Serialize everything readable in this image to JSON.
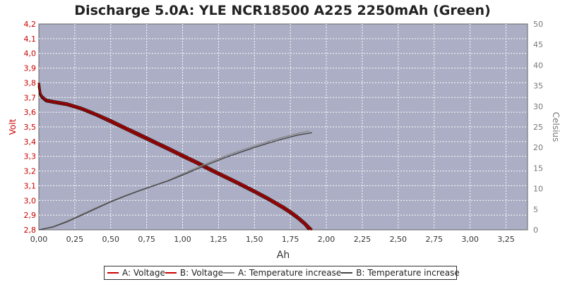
{
  "chart_data": {
    "type": "line",
    "title": "Discharge 5.0A: YLE NCR18500 A225 2250mAh (Green)",
    "xlabel": "Ah",
    "ylabel_left": "Volt",
    "ylabel_right": "Celsius",
    "xlim": [
      0,
      3.4
    ],
    "ylim_left": [
      2.8,
      4.2
    ],
    "ylim_right": [
      0,
      50
    ],
    "grid": true,
    "legend_position": "bottom",
    "x_ticks": [
      "0,00",
      "0,25",
      "0,50",
      "0,75",
      "1,00",
      "1,25",
      "1,50",
      "1,75",
      "2,00",
      "2,25",
      "2,50",
      "2,75",
      "3,00",
      "3,25"
    ],
    "y_left_ticks": [
      "2,8",
      "2,9",
      "3,0",
      "3,1",
      "3,2",
      "3,3",
      "3,4",
      "3,5",
      "3,6",
      "3,7",
      "3,8",
      "3,9",
      "4,0",
      "4,1",
      "4,2"
    ],
    "y_right_ticks": [
      "0",
      "5",
      "10",
      "15",
      "20",
      "25",
      "30",
      "35",
      "40",
      "45",
      "50"
    ],
    "colors": {
      "plot_background": "#abaec4",
      "grid": "#ffffff",
      "voltage_a": "#cc0000",
      "voltage_b": "#cc0000",
      "temperature_a": "#888888",
      "temperature_b": "#444444"
    },
    "series": [
      {
        "name": "A: Voltage",
        "axis": "left",
        "color": "#cc0000",
        "points": [
          [
            0,
            3.78
          ],
          [
            0.01,
            3.72
          ],
          [
            0.02,
            3.7
          ],
          [
            0.05,
            3.675
          ],
          [
            0.1,
            3.665
          ],
          [
            0.2,
            3.648
          ],
          [
            0.3,
            3.618
          ],
          [
            0.4,
            3.578
          ],
          [
            0.5,
            3.532
          ],
          [
            0.6,
            3.485
          ],
          [
            0.7,
            3.438
          ],
          [
            0.8,
            3.392
          ],
          [
            0.9,
            3.345
          ],
          [
            1.0,
            3.297
          ],
          [
            1.1,
            3.25
          ],
          [
            1.2,
            3.2
          ],
          [
            1.3,
            3.153
          ],
          [
            1.4,
            3.105
          ],
          [
            1.5,
            3.055
          ],
          [
            1.6,
            3.003
          ],
          [
            1.7,
            2.945
          ],
          [
            1.75,
            2.913
          ],
          [
            1.8,
            2.877
          ],
          [
            1.85,
            2.836
          ],
          [
            1.88,
            2.8
          ]
        ]
      },
      {
        "name": "B: Voltage",
        "axis": "left",
        "color": "#cc0000",
        "points": [
          [
            0,
            3.8
          ],
          [
            0.01,
            3.73
          ],
          [
            0.02,
            3.71
          ],
          [
            0.05,
            3.685
          ],
          [
            0.1,
            3.675
          ],
          [
            0.2,
            3.658
          ],
          [
            0.3,
            3.628
          ],
          [
            0.4,
            3.588
          ],
          [
            0.5,
            3.545
          ],
          [
            0.6,
            3.498
          ],
          [
            0.7,
            3.452
          ],
          [
            0.8,
            3.405
          ],
          [
            0.9,
            3.358
          ],
          [
            1.0,
            3.31
          ],
          [
            1.1,
            3.263
          ],
          [
            1.2,
            3.213
          ],
          [
            1.3,
            3.165
          ],
          [
            1.4,
            3.117
          ],
          [
            1.5,
            3.067
          ],
          [
            1.6,
            3.015
          ],
          [
            1.7,
            2.958
          ],
          [
            1.75,
            2.926
          ],
          [
            1.8,
            2.89
          ],
          [
            1.85,
            2.849
          ],
          [
            1.9,
            2.8
          ]
        ]
      },
      {
        "name": "A: Temperature increase",
        "axis": "right",
        "color": "#888888",
        "points": [
          [
            0,
            0
          ],
          [
            0.1,
            0.8
          ],
          [
            0.2,
            2.2
          ],
          [
            0.3,
            3.8
          ],
          [
            0.4,
            5.4
          ],
          [
            0.5,
            6.9
          ],
          [
            0.6,
            8.3
          ],
          [
            0.7,
            9.6
          ],
          [
            0.8,
            10.8
          ],
          [
            0.9,
            12.0
          ],
          [
            1.0,
            13.6
          ],
          [
            1.1,
            15.1
          ],
          [
            1.2,
            16.6
          ],
          [
            1.3,
            18.0
          ],
          [
            1.4,
            19.2
          ],
          [
            1.5,
            20.4
          ],
          [
            1.6,
            21.5
          ],
          [
            1.7,
            22.5
          ],
          [
            1.8,
            23.4
          ],
          [
            1.88,
            24.0
          ]
        ]
      },
      {
        "name": "B: Temperature increase",
        "axis": "right",
        "color": "#444444",
        "points": [
          [
            0,
            0
          ],
          [
            0.1,
            0.7
          ],
          [
            0.2,
            2.0
          ],
          [
            0.3,
            3.6
          ],
          [
            0.4,
            5.2
          ],
          [
            0.5,
            6.8
          ],
          [
            0.6,
            8.2
          ],
          [
            0.7,
            9.5
          ],
          [
            0.8,
            10.7
          ],
          [
            0.9,
            11.9
          ],
          [
            1.0,
            13.3
          ],
          [
            1.1,
            14.8
          ],
          [
            1.2,
            16.2
          ],
          [
            1.3,
            17.6
          ],
          [
            1.4,
            18.8
          ],
          [
            1.5,
            20.0
          ],
          [
            1.6,
            21.1
          ],
          [
            1.7,
            22.1
          ],
          [
            1.8,
            23.0
          ],
          [
            1.9,
            23.6
          ]
        ]
      }
    ]
  }
}
